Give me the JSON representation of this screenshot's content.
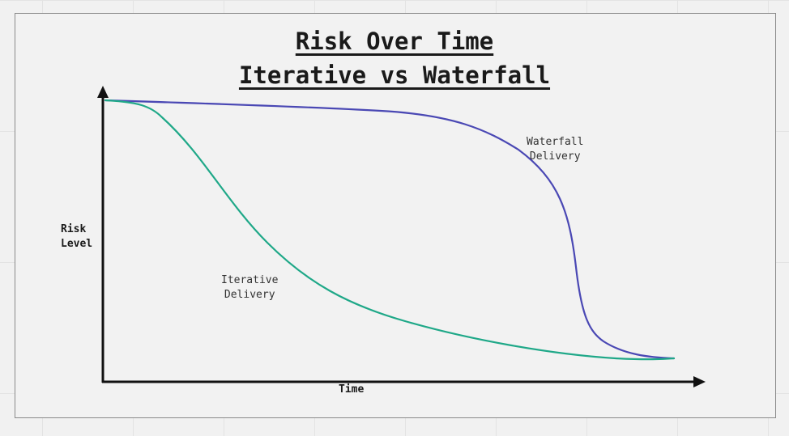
{
  "title": {
    "line1": "Risk Over Time",
    "line2": "Iterative vs Waterfall"
  },
  "axes": {
    "y_label_line1": "Risk",
    "y_label_line2": "Level",
    "x_label": "Time"
  },
  "curves": {
    "waterfall": {
      "label_line1": "Waterfall",
      "label_line2": "Delivery",
      "color": "#4a48b4"
    },
    "iterative": {
      "label_line1": "Iterative",
      "label_line2": "Delivery",
      "color": "#1fa888"
    }
  },
  "colors": {
    "axis": "#111111",
    "frame": "#8a8a8a",
    "background": "#f1f1f1"
  }
}
